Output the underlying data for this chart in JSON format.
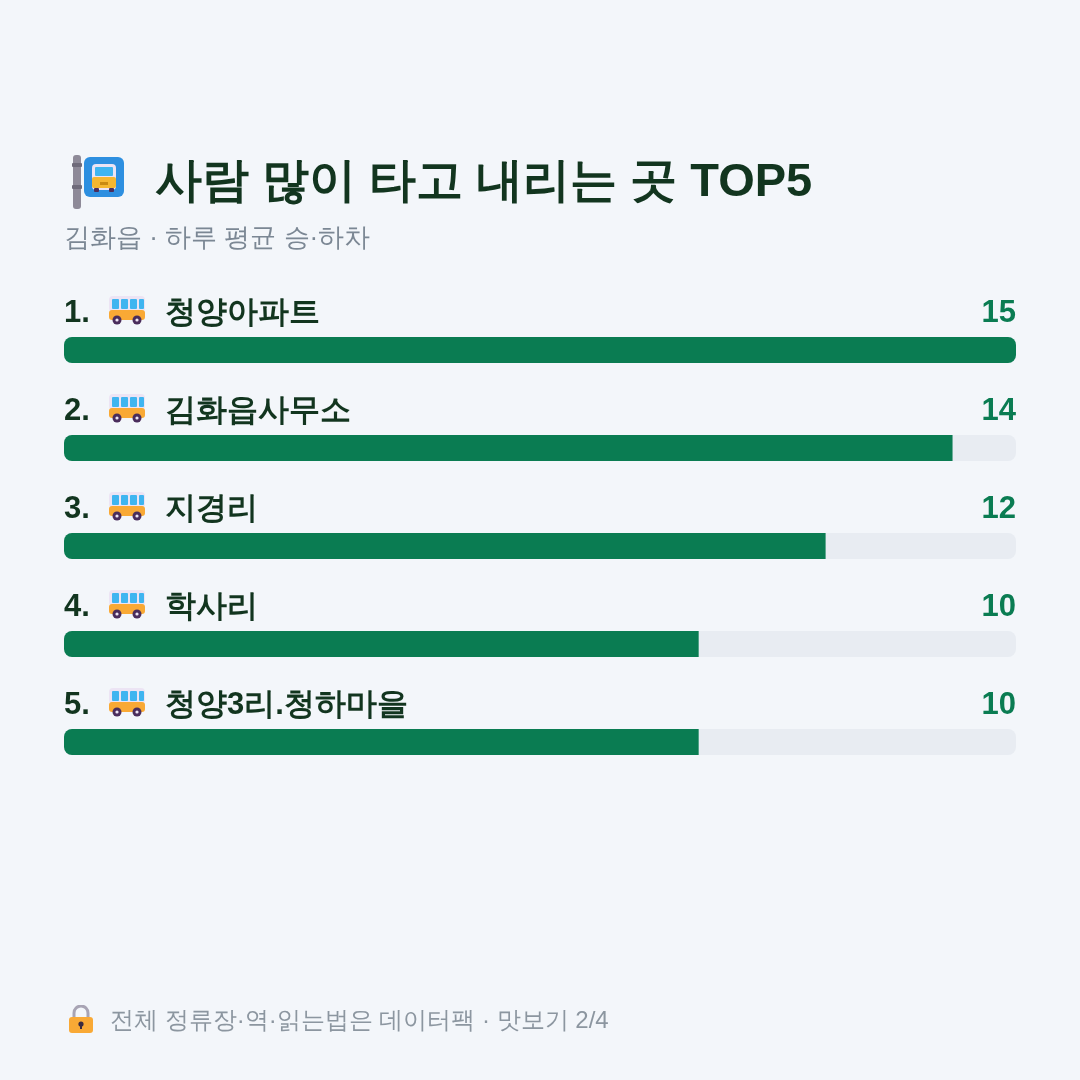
{
  "chart_data": {
    "type": "bar",
    "orientation": "horizontal",
    "title": "사람 많이 타고 내리는 곳 TOP5",
    "subtitle": "김화읍 · 하루 평균 승·하차",
    "categories": [
      "1. 청양아파트",
      "2. 김화읍사무소",
      "3. 지경리",
      "4. 학사리",
      "5. 청양3리.청하마을"
    ],
    "values": [
      15,
      14,
      12,
      10,
      10
    ],
    "color": "#0a7c52",
    "xlim": [
      0,
      15
    ],
    "data_labels": true,
    "tick_labels": "y",
    "annotations": [
      "전체 정류장·역·읽는법은 데이터팩 · 맛보기 2/4"
    ]
  }
}
